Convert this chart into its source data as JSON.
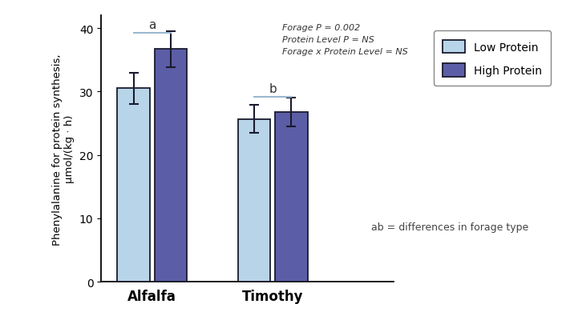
{
  "groups": [
    "Alfalfa",
    "Timothy"
  ],
  "group_centers": [
    1.0,
    2.3
  ],
  "bar_width": 0.35,
  "bar_gap": 0.05,
  "low_protein_values": [
    30.5,
    25.7
  ],
  "high_protein_values": [
    36.7,
    26.8
  ],
  "low_protein_errors": [
    2.5,
    2.2
  ],
  "high_protein_errors": [
    2.8,
    2.3
  ],
  "low_protein_color": "#b8d4e8",
  "high_protein_color": "#5b5ea6",
  "bar_edge_color": "#1a1a2e",
  "ylim": [
    0,
    42
  ],
  "yticks": [
    0,
    10,
    20,
    30,
    40
  ],
  "ylabel_line1": "Phenylalanine for protein synthesis,",
  "ylabel_line2": "μmol/(kg · h)",
  "annotation_text": "Forage P = 0.002\nProtein Level P = NS\nForage x Protein Level = NS",
  "sig_label_alfalfa": "a",
  "sig_label_timothy": "b",
  "legend_low": "Low Protein",
  "legend_high": "High Protein",
  "footnote": "ab = differences in forage type",
  "bracket_color": "#9ab8d0",
  "alfalfa_bracket_y": 39.2,
  "timothy_bracket_y": 29.2,
  "xlim": [
    0.45,
    3.6
  ]
}
